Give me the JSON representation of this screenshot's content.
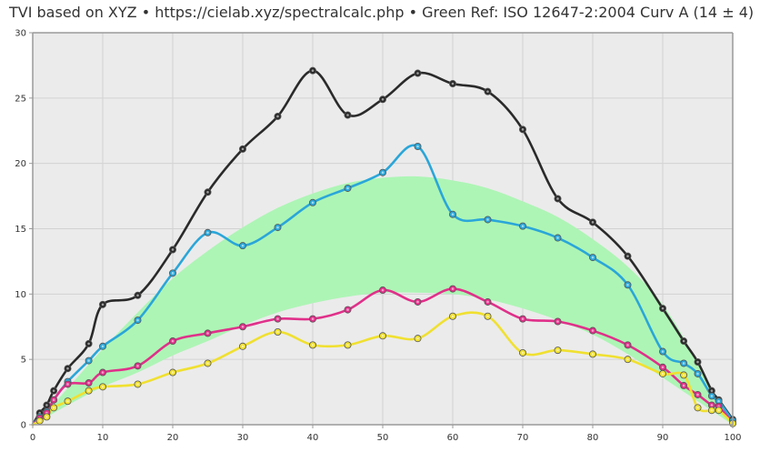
{
  "chart_data": {
    "type": "line",
    "title": "TVI based on XYZ  •  https://cielab.xyz/spectralcalc.php  •  Green Ref: ISO 12647-2:2004 Curv A (14 ± 4)",
    "xlabel": "",
    "ylabel": "",
    "xlim": [
      0,
      100
    ],
    "ylim": [
      0,
      30
    ],
    "x_ticks": [
      0,
      10,
      20,
      30,
      40,
      50,
      60,
      70,
      80,
      90,
      100
    ],
    "y_ticks": [
      0,
      5,
      10,
      15,
      20,
      25,
      30
    ],
    "grid": true,
    "band": {
      "color": "#adf5b5",
      "upper": [
        [
          0,
          0
        ],
        [
          3,
          1.6
        ],
        [
          5,
          2.8
        ],
        [
          10,
          5.8
        ],
        [
          15,
          8.6
        ],
        [
          20,
          11.2
        ],
        [
          25,
          13.3
        ],
        [
          30,
          15.1
        ],
        [
          35,
          16.6
        ],
        [
          40,
          17.7
        ],
        [
          45,
          18.5
        ],
        [
          50,
          18.9
        ],
        [
          55,
          19.0
        ],
        [
          60,
          18.7
        ],
        [
          65,
          18.1
        ],
        [
          70,
          17.1
        ],
        [
          75,
          15.9
        ],
        [
          80,
          14.2
        ],
        [
          85,
          12.1
        ],
        [
          90,
          9.2
        ],
        [
          95,
          4.8
        ],
        [
          97,
          2.6
        ],
        [
          100,
          0
        ]
      ],
      "lower": [
        [
          0,
          0
        ],
        [
          3,
          0.9
        ],
        [
          5,
          1.5
        ],
        [
          10,
          2.9
        ],
        [
          15,
          4.0
        ],
        [
          20,
          5.3
        ],
        [
          25,
          6.4
        ],
        [
          30,
          7.6
        ],
        [
          35,
          8.6
        ],
        [
          40,
          9.3
        ],
        [
          45,
          9.8
        ],
        [
          50,
          10.1
        ],
        [
          55,
          10.1
        ],
        [
          60,
          10.0
        ],
        [
          65,
          9.6
        ],
        [
          70,
          8.9
        ],
        [
          75,
          8.0
        ],
        [
          80,
          6.9
        ],
        [
          85,
          5.4
        ],
        [
          90,
          3.6
        ],
        [
          95,
          1.8
        ],
        [
          100,
          0
        ]
      ]
    },
    "series": [
      {
        "color": "#2a2a2a",
        "points": [
          [
            0,
            0
          ],
          [
            1,
            0.9
          ],
          [
            2,
            1.5
          ],
          [
            3,
            2.6
          ],
          [
            5,
            4.3
          ],
          [
            8,
            6.2
          ],
          [
            10,
            9.2
          ],
          [
            15,
            9.9
          ],
          [
            20,
            13.4
          ],
          [
            25,
            17.8
          ],
          [
            30,
            21.1
          ],
          [
            35,
            23.6
          ],
          [
            40,
            27.1
          ],
          [
            45,
            23.7
          ],
          [
            50,
            24.9
          ],
          [
            55,
            26.9
          ],
          [
            60,
            26.1
          ],
          [
            65,
            25.5
          ],
          [
            70,
            22.6
          ],
          [
            75,
            17.3
          ],
          [
            80,
            15.5
          ],
          [
            85,
            12.9
          ],
          [
            90,
            8.9
          ],
          [
            93,
            6.4
          ],
          [
            95,
            4.8
          ],
          [
            97,
            2.6
          ],
          [
            98,
            1.9
          ],
          [
            100,
            0.4
          ]
        ]
      },
      {
        "color": "#2aa6d9",
        "points": [
          [
            0,
            0
          ],
          [
            1,
            0.6
          ],
          [
            2,
            1.0
          ],
          [
            3,
            1.9
          ],
          [
            5,
            3.3
          ],
          [
            8,
            4.9
          ],
          [
            10,
            6.0
          ],
          [
            15,
            8.0
          ],
          [
            20,
            11.6
          ],
          [
            25,
            14.7
          ],
          [
            30,
            13.7
          ],
          [
            35,
            15.1
          ],
          [
            40,
            17.0
          ],
          [
            45,
            18.1
          ],
          [
            50,
            19.3
          ],
          [
            55,
            21.3
          ],
          [
            60,
            16.1
          ],
          [
            65,
            15.7
          ],
          [
            70,
            15.2
          ],
          [
            75,
            14.3
          ],
          [
            80,
            12.8
          ],
          [
            85,
            10.7
          ],
          [
            90,
            5.6
          ],
          [
            93,
            4.7
          ],
          [
            95,
            3.9
          ],
          [
            97,
            2.2
          ],
          [
            98,
            1.8
          ],
          [
            100,
            0.3
          ]
        ]
      },
      {
        "color": "#e0308a",
        "points": [
          [
            0,
            0
          ],
          [
            1,
            0.5
          ],
          [
            2,
            0.9
          ],
          [
            3,
            1.9
          ],
          [
            5,
            3.1
          ],
          [
            8,
            3.2
          ],
          [
            10,
            4.0
          ],
          [
            15,
            4.5
          ],
          [
            20,
            6.4
          ],
          [
            25,
            7.0
          ],
          [
            30,
            7.5
          ],
          [
            35,
            8.1
          ],
          [
            40,
            8.1
          ],
          [
            45,
            8.8
          ],
          [
            50,
            10.3
          ],
          [
            55,
            9.4
          ],
          [
            60,
            10.4
          ],
          [
            65,
            9.4
          ],
          [
            70,
            8.1
          ],
          [
            75,
            7.9
          ],
          [
            80,
            7.2
          ],
          [
            85,
            6.1
          ],
          [
            90,
            4.4
          ],
          [
            93,
            3.0
          ],
          [
            95,
            2.3
          ],
          [
            97,
            1.5
          ],
          [
            98,
            1.4
          ],
          [
            100,
            0.1
          ]
        ]
      },
      {
        "color": "#f0e030",
        "points": [
          [
            0,
            0
          ],
          [
            1,
            0.3
          ],
          [
            2,
            0.6
          ],
          [
            3,
            1.3
          ],
          [
            5,
            1.8
          ],
          [
            8,
            2.6
          ],
          [
            10,
            2.9
          ],
          [
            15,
            3.1
          ],
          [
            20,
            4.0
          ],
          [
            25,
            4.7
          ],
          [
            30,
            6.0
          ],
          [
            35,
            7.1
          ],
          [
            40,
            6.1
          ],
          [
            45,
            6.1
          ],
          [
            50,
            6.8
          ],
          [
            55,
            6.6
          ],
          [
            60,
            8.3
          ],
          [
            65,
            8.3
          ],
          [
            70,
            5.5
          ],
          [
            75,
            5.7
          ],
          [
            80,
            5.4
          ],
          [
            85,
            5.0
          ],
          [
            90,
            3.9
          ],
          [
            93,
            3.8
          ],
          [
            95,
            1.3
          ],
          [
            97,
            1.1
          ],
          [
            98,
            1.1
          ],
          [
            100,
            0.1
          ]
        ]
      }
    ]
  }
}
